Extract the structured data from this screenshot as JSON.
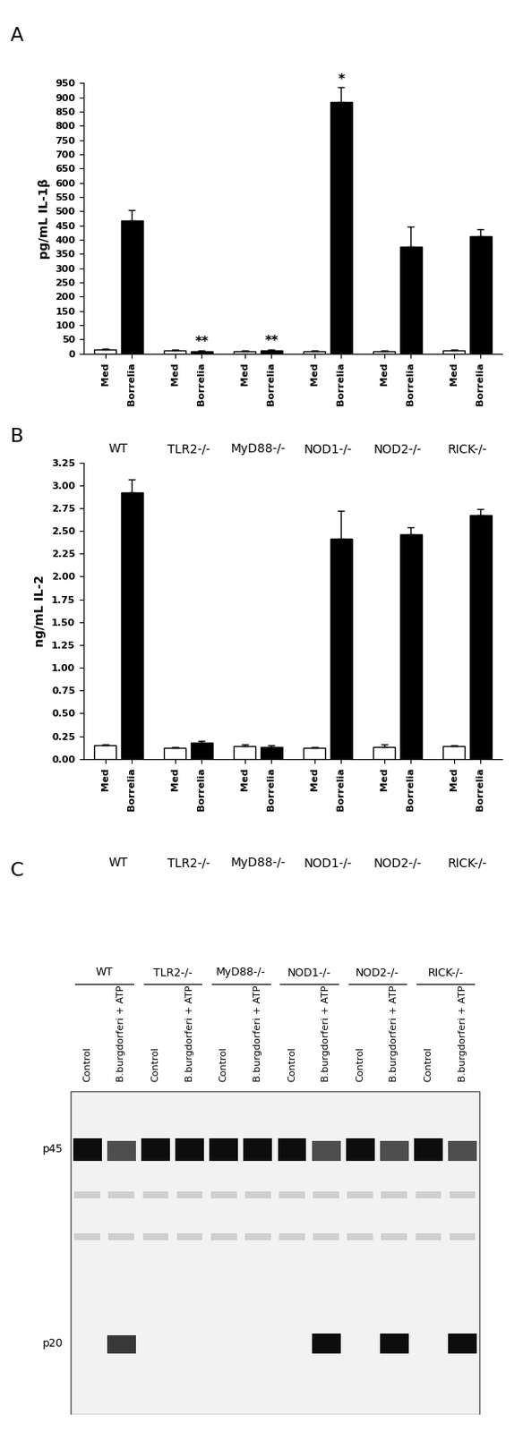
{
  "chart_data": [
    {
      "type": "bar",
      "title": "A",
      "ylabel": "pg/mL IL-1β",
      "categories": [
        "WT",
        "TLR2-/-",
        "MyD88-/-",
        "NOD1-/-",
        "NOD2-/-",
        "RICK-/-"
      ],
      "series": [
        {
          "name": "Med",
          "color": "#ffffff",
          "values": [
            15,
            12,
            10,
            10,
            10,
            12
          ],
          "errors": [
            2,
            2,
            2,
            2,
            2,
            2
          ]
        },
        {
          "name": "Borrelia",
          "color": "#000000",
          "values": [
            468,
            10,
            12,
            885,
            375,
            412
          ],
          "errors": [
            35,
            3,
            3,
            50,
            70,
            25
          ]
        }
      ],
      "annotations": [
        {
          "category": "TLR2-/-",
          "series": "Borrelia",
          "text": "**"
        },
        {
          "category": "MyD88-/-",
          "series": "Borrelia",
          "text": "**"
        },
        {
          "category": "NOD1-/-",
          "series": "Borrelia",
          "text": "*"
        }
      ],
      "ylim": [
        0,
        950
      ],
      "yticks": [
        0,
        50,
        100,
        150,
        200,
        250,
        300,
        350,
        400,
        450,
        500,
        550,
        600,
        650,
        700,
        750,
        800,
        850,
        900,
        950
      ]
    },
    {
      "type": "bar",
      "title": "B",
      "ylabel": "ng/mL IL-2",
      "categories": [
        "WT",
        "TLR2-/-",
        "MyD88-/-",
        "NOD1-/-",
        "NOD2-/-",
        "RICK-/-"
      ],
      "series": [
        {
          "name": "Med",
          "color": "#ffffff",
          "values": [
            0.15,
            0.12,
            0.14,
            0.12,
            0.13,
            0.14
          ],
          "errors": [
            0.01,
            0.01,
            0.02,
            0.01,
            0.03,
            0.01
          ]
        },
        {
          "name": "Borrelia",
          "color": "#000000",
          "values": [
            2.92,
            0.18,
            0.13,
            2.42,
            2.46,
            2.67
          ],
          "errors": [
            0.15,
            0.02,
            0.02,
            0.3,
            0.08,
            0.07
          ]
        }
      ],
      "ylim": [
        0,
        3.25
      ],
      "yticks": [
        {
          "value": 0,
          "label": "0.00"
        },
        {
          "value": 0.25,
          "label": "0.25"
        },
        {
          "value": 0.5,
          "label": "0.50"
        },
        {
          "value": 0.75,
          "label": "0.75"
        },
        {
          "value": 1,
          "label": "1.00"
        },
        {
          "value": 1.25,
          "label": "1.25"
        },
        {
          "value": 1.5,
          "label": "1.50"
        },
        {
          "value": 1.75,
          "label": "1.75"
        },
        {
          "value": 2,
          "label": "2.00"
        },
        {
          "value": 2.25,
          "label": "2.25"
        },
        {
          "value": 2.5,
          "label": "2.50"
        },
        {
          "value": 2.75,
          "label": "2.75"
        },
        {
          "value": 3,
          "label": "3.00"
        },
        {
          "value": 3.25,
          "label": "3.25"
        }
      ]
    }
  ],
  "blot": {
    "title": "C",
    "groups": [
      "WT",
      "TLR2-/-",
      "MyD88-/-",
      "NOD1-/-",
      "NOD2-/-",
      "RICK-/-"
    ],
    "band_labels": [
      "p45",
      "p20"
    ],
    "lanes": [
      {
        "group": "WT",
        "label": "Control",
        "bands": {
          "p45": 1.0,
          "p20": 0.0
        }
      },
      {
        "group": "WT",
        "label": "B.burgdorferi + ATP",
        "bands": {
          "p45": 0.7,
          "p20": 0.8
        }
      },
      {
        "group": "TLR2-/-",
        "label": "Control",
        "bands": {
          "p45": 1.0,
          "p20": 0.0
        }
      },
      {
        "group": "TLR2-/-",
        "label": "B.burgdorferi + ATP",
        "bands": {
          "p45": 1.0,
          "p20": 0.0
        }
      },
      {
        "group": "MyD88-/-",
        "label": "Control",
        "bands": {
          "p45": 1.0,
          "p20": 0.0
        }
      },
      {
        "group": "MyD88-/-",
        "label": "B.burgdorferi + ATP",
        "bands": {
          "p45": 1.0,
          "p20": 0.0
        }
      },
      {
        "group": "NOD1-/-",
        "label": "Control",
        "bands": {
          "p45": 1.0,
          "p20": 0.0
        }
      },
      {
        "group": "NOD1-/-",
        "label": "B.burgdorferi + ATP",
        "bands": {
          "p45": 0.7,
          "p20": 1.0
        }
      },
      {
        "group": "NOD2-/-",
        "label": "Control",
        "bands": {
          "p45": 1.0,
          "p20": 0.0
        }
      },
      {
        "group": "NOD2-/-",
        "label": "B.burgdorferi + ATP",
        "bands": {
          "p45": 0.7,
          "p20": 1.0
        }
      },
      {
        "group": "RICK-/-",
        "label": "Control",
        "bands": {
          "p45": 1.0,
          "p20": 0.0
        }
      },
      {
        "group": "RICK-/-",
        "label": "B.burgdorferi + ATP",
        "bands": {
          "p45": 0.7,
          "p20": 1.0
        }
      }
    ]
  }
}
